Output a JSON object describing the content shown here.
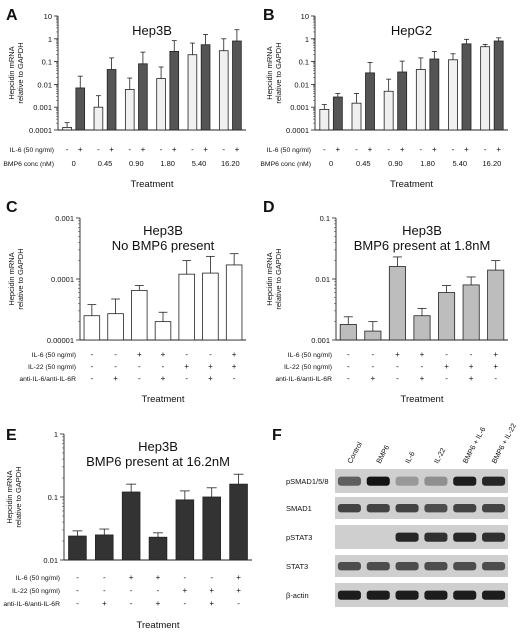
{
  "panels": [
    {
      "letter": "A",
      "title_lines": [
        "Hep3B"
      ],
      "ylabel_lines": [
        "Hepcidin mRNA",
        "relative to GAPDH"
      ],
      "ylog": [
        0.0001,
        10
      ],
      "yticks": [
        {
          "v": 10,
          "label": "10"
        },
        {
          "v": 1,
          "label": "1"
        },
        {
          "v": 0.1,
          "label": "0.1"
        },
        {
          "v": 0.01,
          "label": "0.01"
        },
        {
          "v": 0.001,
          "label": "0.001"
        },
        {
          "v": 0.0001,
          "label": "0.0001"
        }
      ],
      "bars": [
        {
          "v": 0.00013,
          "err": 8e-05,
          "fill": "#f0f0f0"
        },
        {
          "v": 0.007,
          "err": 0.016,
          "fill": "#555555"
        },
        {
          "v": 0.001,
          "err": 0.0022,
          "fill": "#f0f0f0"
        },
        {
          "v": 0.045,
          "err": 0.1,
          "fill": "#555555"
        },
        {
          "v": 0.006,
          "err": 0.013,
          "fill": "#f0f0f0"
        },
        {
          "v": 0.08,
          "err": 0.18,
          "fill": "#555555"
        },
        {
          "v": 0.018,
          "err": 0.04,
          "fill": "#f0f0f0"
        },
        {
          "v": 0.28,
          "err": 0.55,
          "fill": "#555555"
        },
        {
          "v": 0.2,
          "err": 0.45,
          "fill": "#f0f0f0"
        },
        {
          "v": 0.55,
          "err": 1.0,
          "fill": "#555555"
        },
        {
          "v": 0.3,
          "err": 0.7,
          "fill": "#f0f0f0"
        },
        {
          "v": 0.8,
          "err": 1.7,
          "fill": "#555555"
        }
      ],
      "table": [
        {
          "label": "IL-6 (50 ng/ml)",
          "cells": [
            "-",
            "+",
            "-",
            "+",
            "-",
            "+",
            "-",
            "+",
            "-",
            "+",
            "-",
            "+"
          ]
        },
        {
          "label": "BMP6 conc (nM)",
          "group_cells": [
            "0",
            "0.45",
            "0.90",
            "1.80",
            "5.40",
            "16.20"
          ]
        }
      ],
      "xlabel": "Treatment"
    },
    {
      "letter": "B",
      "title_lines": [
        "HepG2"
      ],
      "ylabel_lines": [
        "Hepcidin mRNA",
        "relative to GAPDH"
      ],
      "ylog": [
        0.0001,
        10
      ],
      "yticks": [
        {
          "v": 10,
          "label": "10"
        },
        {
          "v": 1,
          "label": "1"
        },
        {
          "v": 0.1,
          "label": "0.1"
        },
        {
          "v": 0.01,
          "label": "0.01"
        },
        {
          "v": 0.001,
          "label": "0.001"
        },
        {
          "v": 0.0001,
          "label": "0.0001"
        }
      ],
      "bars": [
        {
          "v": 0.0008,
          "err": 0.0005,
          "fill": "#f0f0f0"
        },
        {
          "v": 0.0028,
          "err": 0.0012,
          "fill": "#555555"
        },
        {
          "v": 0.0015,
          "err": 0.0025,
          "fill": "#f0f0f0"
        },
        {
          "v": 0.032,
          "err": 0.06,
          "fill": "#555555"
        },
        {
          "v": 0.005,
          "err": 0.012,
          "fill": "#f0f0f0"
        },
        {
          "v": 0.035,
          "err": 0.07,
          "fill": "#555555"
        },
        {
          "v": 0.045,
          "err": 0.1,
          "fill": "#f0f0f0"
        },
        {
          "v": 0.13,
          "err": 0.15,
          "fill": "#555555"
        },
        {
          "v": 0.12,
          "err": 0.1,
          "fill": "#f0f0f0"
        },
        {
          "v": 0.6,
          "err": 0.35,
          "fill": "#555555"
        },
        {
          "v": 0.45,
          "err": 0.12,
          "fill": "#f0f0f0"
        },
        {
          "v": 0.8,
          "err": 0.3,
          "fill": "#555555"
        }
      ],
      "table": [
        {
          "label": "IL-6 (50 ng/ml)",
          "cells": [
            "-",
            "+",
            "-",
            "+",
            "-",
            "+",
            "-",
            "+",
            "-",
            "+",
            "-",
            "+"
          ]
        },
        {
          "label": "BMP6 conc (nM)",
          "group_cells": [
            "0",
            "0.45",
            "0.90",
            "1.80",
            "5.40",
            "16.20"
          ]
        }
      ],
      "xlabel": "Treatment"
    },
    {
      "letter": "C",
      "title_lines": [
        "Hep3B",
        "No BMP6 present"
      ],
      "ylabel_lines": [
        "Hepcidin mRNA",
        "relative to GAPDH"
      ],
      "ylog": [
        1e-05,
        0.001
      ],
      "yticks": [
        {
          "v": 0.001,
          "label": "0.001"
        },
        {
          "v": 0.0001,
          "label": "0.0001"
        },
        {
          "v": 1e-05,
          "label": "0.00001"
        }
      ],
      "bars": [
        {
          "v": 2.5e-05,
          "err": 1.3e-05,
          "fill": "#ffffff"
        },
        {
          "v": 2.7e-05,
          "err": 2e-05,
          "fill": "#ffffff"
        },
        {
          "v": 6.5e-05,
          "err": 1.3e-05,
          "fill": "#ffffff"
        },
        {
          "v": 2e-05,
          "err": 8.5e-06,
          "fill": "#ffffff"
        },
        {
          "v": 0.00012,
          "err": 8e-05,
          "fill": "#ffffff"
        },
        {
          "v": 0.000125,
          "err": 0.00011,
          "fill": "#ffffff"
        },
        {
          "v": 0.00017,
          "err": 9e-05,
          "fill": "#ffffff"
        }
      ],
      "table": [
        {
          "label": "IL-6 (50 ng/ml)",
          "cells": [
            "-",
            "-",
            "+",
            "+",
            "-",
            "-",
            "+"
          ]
        },
        {
          "label": "IL-22 (50 ng/ml)",
          "cells": [
            "-",
            "-",
            "-",
            "-",
            "+",
            "+",
            "+"
          ]
        },
        {
          "label": "anti-IL-6/anti-IL-6R",
          "cells": [
            "-",
            "+",
            "-",
            "+",
            "-",
            "+",
            "-"
          ]
        }
      ],
      "xlabel": "Treatment"
    },
    {
      "letter": "D",
      "title_lines": [
        "Hep3B",
        "BMP6 present at 1.8nM"
      ],
      "ylabel_lines": [
        "Hepcidin mRNA",
        "relative to GAPDH"
      ],
      "ylog": [
        0.001,
        0.1
      ],
      "yticks": [
        {
          "v": 0.1,
          "label": "0.1"
        },
        {
          "v": 0.01,
          "label": "0.01"
        },
        {
          "v": 0.001,
          "label": "0.001"
        }
      ],
      "bars": [
        {
          "v": 0.0018,
          "err": 0.0006,
          "fill": "#bdbdbd"
        },
        {
          "v": 0.0014,
          "err": 0.0006,
          "fill": "#bdbdbd"
        },
        {
          "v": 0.016,
          "err": 0.007,
          "fill": "#bdbdbd"
        },
        {
          "v": 0.0025,
          "err": 0.0008,
          "fill": "#bdbdbd"
        },
        {
          "v": 0.006,
          "err": 0.0018,
          "fill": "#bdbdbd"
        },
        {
          "v": 0.008,
          "err": 0.0028,
          "fill": "#bdbdbd"
        },
        {
          "v": 0.014,
          "err": 0.006,
          "fill": "#bdbdbd"
        }
      ],
      "table": [
        {
          "label": "IL-6 (50 ng/ml)",
          "cells": [
            "-",
            "-",
            "+",
            "+",
            "-",
            "-",
            "+"
          ]
        },
        {
          "label": "IL-22 (50 ng/ml)",
          "cells": [
            "-",
            "-",
            "-",
            "-",
            "+",
            "+",
            "+"
          ]
        },
        {
          "label": "anti-IL-6/anti-IL-6R",
          "cells": [
            "-",
            "+",
            "-",
            "+",
            "-",
            "+",
            "-"
          ]
        }
      ],
      "xlabel": "Treatment"
    },
    {
      "letter": "E",
      "title_lines": [
        "Hep3B",
        "BMP6 present at 16.2nM"
      ],
      "ylabel_lines": [
        "Hepcidin mRNA",
        "relative to GAPDH"
      ],
      "ylog": [
        0.01,
        1
      ],
      "yticks": [
        {
          "v": 1,
          "label": "1"
        },
        {
          "v": 0.1,
          "label": "0.1"
        },
        {
          "v": 0.01,
          "label": "0.01"
        }
      ],
      "bars": [
        {
          "v": 0.024,
          "err": 0.005,
          "fill": "#333333"
        },
        {
          "v": 0.025,
          "err": 0.006,
          "fill": "#333333"
        },
        {
          "v": 0.12,
          "err": 0.04,
          "fill": "#333333"
        },
        {
          "v": 0.023,
          "err": 0.004,
          "fill": "#333333"
        },
        {
          "v": 0.09,
          "err": 0.035,
          "fill": "#333333"
        },
        {
          "v": 0.1,
          "err": 0.04,
          "fill": "#333333"
        },
        {
          "v": 0.16,
          "err": 0.07,
          "fill": "#333333"
        }
      ],
      "table": [
        {
          "label": "IL-6 (50 ng/ml)",
          "cells": [
            "-",
            "-",
            "+",
            "+",
            "-",
            "-",
            "+"
          ]
        },
        {
          "label": "IL-22 (50 ng/ml)",
          "cells": [
            "-",
            "-",
            "-",
            "-",
            "+",
            "+",
            "+"
          ]
        },
        {
          "label": "anti-IL-6/anti-IL-6R",
          "cells": [
            "-",
            "+",
            "-",
            "+",
            "-",
            "+",
            "-"
          ]
        }
      ],
      "xlabel": "Treatment"
    }
  ],
  "blot": {
    "letter": "F",
    "columns": [
      "Control",
      "BMP6",
      "IL-6",
      "IL-22",
      "BMP6 + IL-6",
      "BMP6 + IL-22"
    ],
    "rows": [
      {
        "label": "pSMAD1/5/8",
        "intensity": [
          0.55,
          0.95,
          0.25,
          0.3,
          0.9,
          0.85
        ]
      },
      {
        "label": "SMAD1",
        "intensity": [
          0.7,
          0.7,
          0.7,
          0.65,
          0.7,
          0.7
        ]
      },
      {
        "label": "pSTAT3",
        "intensity": [
          0.0,
          0.0,
          0.85,
          0.8,
          0.85,
          0.8
        ]
      },
      {
        "label": "STAT3",
        "intensity": [
          0.65,
          0.65,
          0.65,
          0.65,
          0.65,
          0.65
        ]
      },
      {
        "label": "β-actin",
        "intensity": [
          0.9,
          0.9,
          0.9,
          0.9,
          0.9,
          0.9
        ]
      }
    ]
  },
  "chart_data": [
    {
      "type": "bar",
      "panel": "A",
      "title": "Hep3B",
      "ylabel": "Hepcidin mRNA relative to GAPDH",
      "xlabel": "Treatment",
      "yscale": "log",
      "ylim": [
        0.0001,
        10
      ],
      "categories": [
        "0",
        "0.45",
        "0.90",
        "1.80",
        "5.40",
        "16.20"
      ],
      "series": [
        {
          "name": "IL-6 (50 ng/ml) -",
          "values": [
            0.00013,
            0.001,
            0.006,
            0.018,
            0.2,
            0.3
          ],
          "errors": [
            8e-05,
            0.0022,
            0.013,
            0.04,
            0.45,
            0.7
          ]
        },
        {
          "name": "IL-6 (50 ng/ml) +",
          "values": [
            0.007,
            0.045,
            0.08,
            0.28,
            0.55,
            0.8
          ],
          "errors": [
            0.016,
            0.1,
            0.18,
            0.55,
            1.0,
            1.7
          ]
        }
      ]
    },
    {
      "type": "bar",
      "panel": "B",
      "title": "HepG2",
      "ylabel": "Hepcidin mRNA relative to GAPDH",
      "xlabel": "Treatment",
      "yscale": "log",
      "ylim": [
        0.0001,
        10
      ],
      "categories": [
        "0",
        "0.45",
        "0.90",
        "1.80",
        "5.40",
        "16.20"
      ],
      "series": [
        {
          "name": "IL-6 (50 ng/ml) -",
          "values": [
            0.0008,
            0.0015,
            0.005,
            0.045,
            0.12,
            0.45
          ],
          "errors": [
            0.0005,
            0.0025,
            0.012,
            0.1,
            0.1,
            0.12
          ]
        },
        {
          "name": "IL-6 (50 ng/ml) +",
          "values": [
            0.0028,
            0.032,
            0.035,
            0.13,
            0.6,
            0.8
          ],
          "errors": [
            0.0012,
            0.06,
            0.07,
            0.15,
            0.35,
            0.3
          ]
        }
      ]
    },
    {
      "type": "bar",
      "panel": "C",
      "title": "Hep3B No BMP6 present",
      "ylabel": "Hepcidin mRNA relative to GAPDH",
      "xlabel": "Treatment",
      "yscale": "log",
      "ylim": [
        1e-05,
        0.001
      ],
      "values": [
        2.5e-05,
        2.7e-05,
        6.5e-05,
        2e-05,
        0.00012,
        0.000125,
        0.00017
      ]
    },
    {
      "type": "bar",
      "panel": "D",
      "title": "Hep3B BMP6 present at 1.8nM",
      "ylabel": "Hepcidin mRNA relative to GAPDH",
      "xlabel": "Treatment",
      "yscale": "log",
      "ylim": [
        0.001,
        0.1
      ],
      "values": [
        0.0018,
        0.0014,
        0.016,
        0.0025,
        0.006,
        0.008,
        0.014
      ]
    },
    {
      "type": "bar",
      "panel": "E",
      "title": "Hep3B BMP6 present at 16.2nM",
      "ylabel": "Hepcidin mRNA relative to GAPDH",
      "xlabel": "Treatment",
      "yscale": "log",
      "ylim": [
        0.01,
        1
      ],
      "values": [
        0.024,
        0.025,
        0.12,
        0.023,
        0.09,
        0.1,
        0.16
      ]
    }
  ]
}
